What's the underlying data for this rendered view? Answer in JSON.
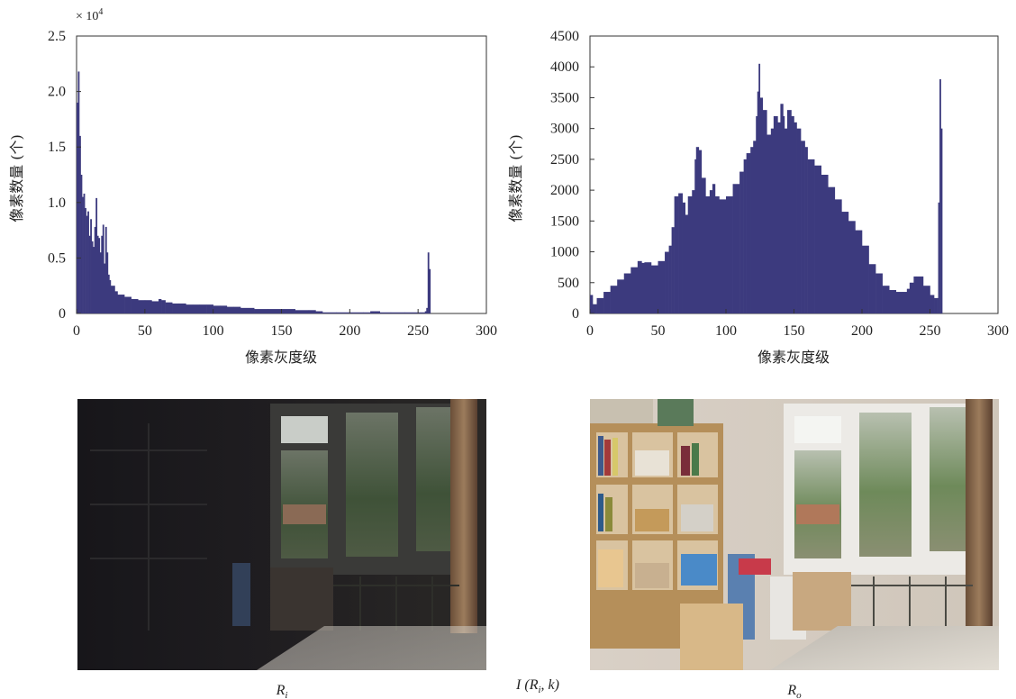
{
  "chart_data": [
    {
      "type": "bar",
      "xlabel": "像素灰度级",
      "ylabel": "像素数量 (个)",
      "multiplier_label": "× 10",
      "multiplier_exp": "4",
      "xlim": [
        0,
        300
      ],
      "ylim": [
        0,
        2.5
      ],
      "xticks": [
        0,
        50,
        100,
        150,
        200,
        250,
        300
      ],
      "yticks": [
        0,
        0.5,
        1.0,
        1.5,
        2.0,
        2.5
      ],
      "ytick_labels": [
        "0",
        "0.5",
        "1.0",
        "1.5",
        "2.0",
        "2.5"
      ],
      "grid": false,
      "color": "#3c3a7e",
      "x": [
        0,
        1,
        2,
        3,
        4,
        5,
        6,
        7,
        8,
        9,
        10,
        11,
        12,
        13,
        14,
        15,
        16,
        17,
        18,
        19,
        20,
        21,
        22,
        23,
        24,
        25,
        28,
        30,
        35,
        40,
        45,
        50,
        55,
        60,
        62,
        65,
        70,
        75,
        80,
        85,
        90,
        95,
        100,
        105,
        110,
        115,
        120,
        130,
        140,
        150,
        160,
        170,
        175,
        180,
        190,
        200,
        210,
        215,
        218,
        222,
        230,
        240,
        250,
        255,
        256,
        257,
        258
      ],
      "values": [
        1.9,
        2.18,
        1.6,
        1.25,
        1.05,
        1.08,
        0.95,
        0.88,
        0.92,
        0.7,
        0.85,
        0.65,
        0.6,
        0.78,
        1.04,
        0.7,
        0.68,
        0.55,
        0.7,
        0.8,
        0.45,
        0.78,
        0.55,
        0.35,
        0.3,
        0.25,
        0.2,
        0.17,
        0.15,
        0.13,
        0.12,
        0.12,
        0.11,
        0.13,
        0.12,
        0.1,
        0.09,
        0.09,
        0.08,
        0.08,
        0.08,
        0.08,
        0.07,
        0.07,
        0.06,
        0.06,
        0.05,
        0.04,
        0.04,
        0.04,
        0.03,
        0.03,
        0.02,
        0.01,
        0.01,
        0.01,
        0.01,
        0.02,
        0.02,
        0.01,
        0.01,
        0.01,
        0.01,
        0.02,
        0.05,
        0.55,
        0.4
      ]
    },
    {
      "type": "bar",
      "xlabel": "像素灰度级",
      "ylabel": "像素数量 (个)",
      "xlim": [
        0,
        300
      ],
      "ylim": [
        0,
        4500
      ],
      "xticks": [
        0,
        50,
        100,
        150,
        200,
        250,
        300
      ],
      "yticks": [
        0,
        500,
        1000,
        1500,
        2000,
        2500,
        3000,
        3500,
        4000,
        4500
      ],
      "grid": false,
      "color": "#3c3a7e",
      "x": [
        0,
        2,
        5,
        10,
        15,
        20,
        25,
        30,
        35,
        38,
        40,
        45,
        50,
        55,
        58,
        60,
        62,
        65,
        68,
        70,
        72,
        75,
        77,
        78,
        80,
        82,
        85,
        88,
        90,
        92,
        95,
        100,
        105,
        110,
        113,
        115,
        118,
        120,
        122,
        123,
        124,
        125,
        127,
        130,
        133,
        135,
        138,
        140,
        142,
        143,
        145,
        148,
        150,
        152,
        155,
        158,
        160,
        165,
        170,
        175,
        180,
        185,
        190,
        195,
        200,
        205,
        210,
        215,
        220,
        225,
        230,
        233,
        235,
        238,
        240,
        245,
        250,
        253,
        255,
        256,
        257,
        258
      ],
      "values": [
        300,
        150,
        250,
        350,
        450,
        550,
        650,
        750,
        850,
        820,
        830,
        780,
        850,
        1000,
        1100,
        1400,
        1900,
        1950,
        1800,
        1600,
        1900,
        2000,
        2500,
        2700,
        2650,
        2200,
        1900,
        2000,
        2100,
        1900,
        1850,
        1900,
        2100,
        2300,
        2500,
        2600,
        2700,
        2800,
        3200,
        3600,
        4050,
        3500,
        3300,
        2900,
        3000,
        3200,
        3100,
        3400,
        3200,
        3000,
        3300,
        3200,
        3100,
        3000,
        2800,
        2700,
        2500,
        2400,
        2250,
        2050,
        1850,
        1650,
        1500,
        1350,
        1100,
        800,
        650,
        450,
        380,
        350,
        350,
        400,
        500,
        600,
        600,
        450,
        300,
        250,
        250,
        1800,
        3800,
        3000
      ]
    },
    {
      "type": "image",
      "caption_main": "R",
      "caption_sub": "i"
    },
    {
      "type": "image",
      "caption_main": "R",
      "caption_sub": "o"
    }
  ],
  "center_caption": {
    "prefix": "I (R",
    "sub": "i",
    "suffix": ", k)"
  }
}
